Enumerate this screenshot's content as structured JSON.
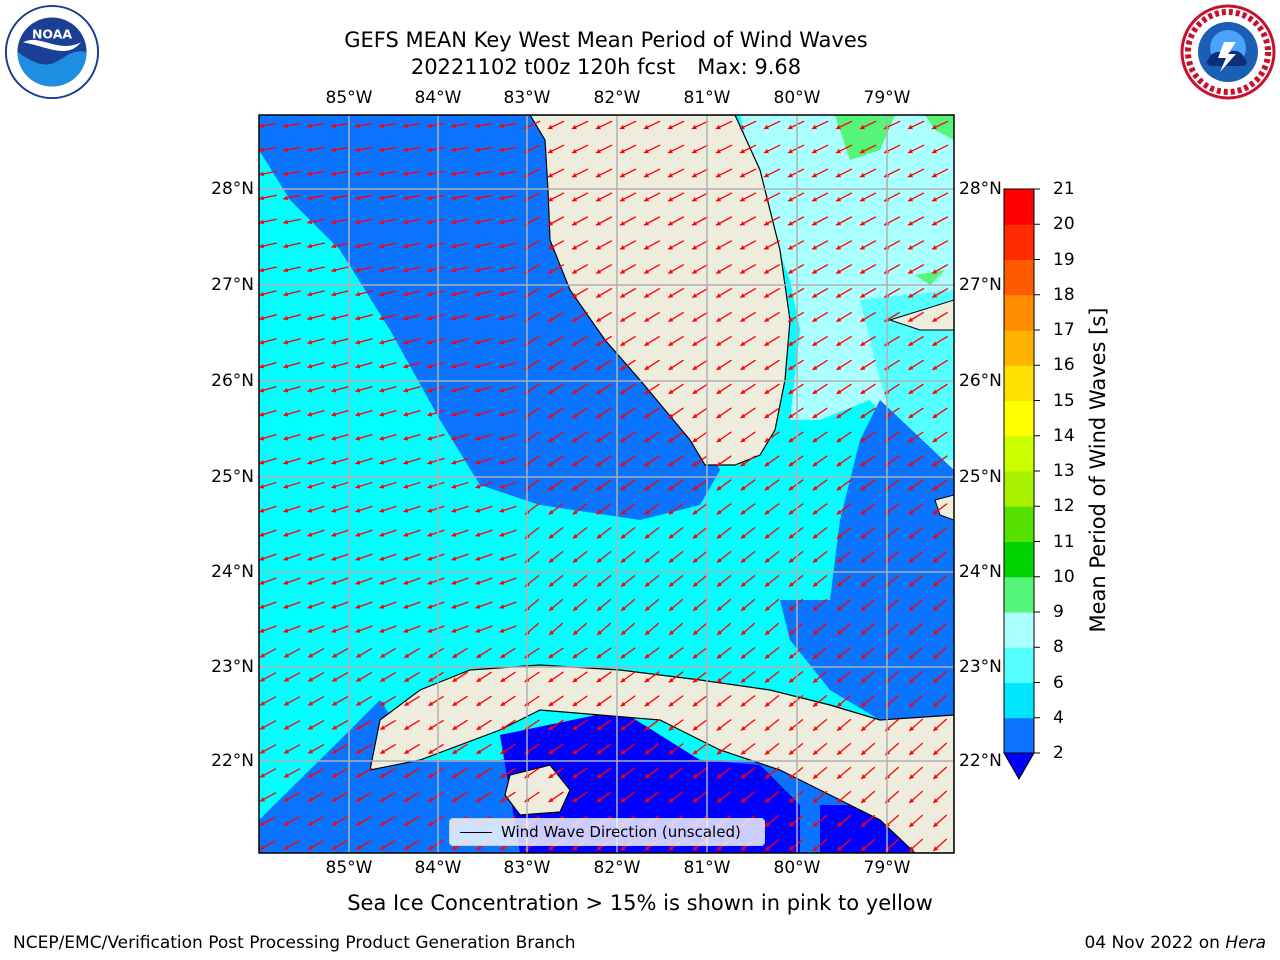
{
  "title_line1": "GEFS MEAN Key West Mean Period of Wind Waves",
  "title_line2_run": "20221102 t00z 120h fcst",
  "title_line2_max": "Max: 9.68",
  "subnote": "Sea Ice Concentration > 15% is shown in pink to yellow",
  "footer_left": "NCEP/EMC/Verification Post Processing Product Generation Branch",
  "footer_date": "04 Nov 2022 on",
  "footer_machine": "Hera",
  "legend_label": "Wind Wave Direction (unscaled)",
  "logos": {
    "left": "noaa-logo",
    "right": "national-weather-service-logo",
    "left_text": "NOAA"
  },
  "lon_labels": [
    "85°W",
    "84°W",
    "83°W",
    "82°W",
    "81°W",
    "80°W",
    "79°W"
  ],
  "lat_labels": [
    "28°N",
    "27°N",
    "26°N",
    "25°N",
    "24°N",
    "23°N",
    "22°N"
  ],
  "colorbar": {
    "title": "Mean Period of Wind Waves [s]",
    "ticks": [
      "2",
      "4",
      "6",
      "8",
      "9",
      "10",
      "11",
      "12",
      "13",
      "14",
      "15",
      "16",
      "17",
      "18",
      "19",
      "20",
      "21"
    ],
    "colors": [
      "#0a74ff",
      "#00e6ff",
      "#55ffff",
      "#aaffff",
      "#55f57a",
      "#00d400",
      "#55e000",
      "#a6f000",
      "#ccff00",
      "#ffff00",
      "#ffe000",
      "#ffb300",
      "#ff8c00",
      "#ff5a00",
      "#ff2a00",
      "#ff0000"
    ],
    "under_color": "#0000ff"
  },
  "chart_data": {
    "type": "heatmap",
    "variable": "Mean Period of Wind Waves",
    "units": "s",
    "max": 9.68,
    "lon_range": [
      -86.0,
      -78.3
    ],
    "lat_range": [
      21.0,
      28.8
    ],
    "vector_field": "Wind Wave Direction (unscaled)",
    "vector_color": "#ff0000",
    "land_color": "#eeecdc"
  }
}
